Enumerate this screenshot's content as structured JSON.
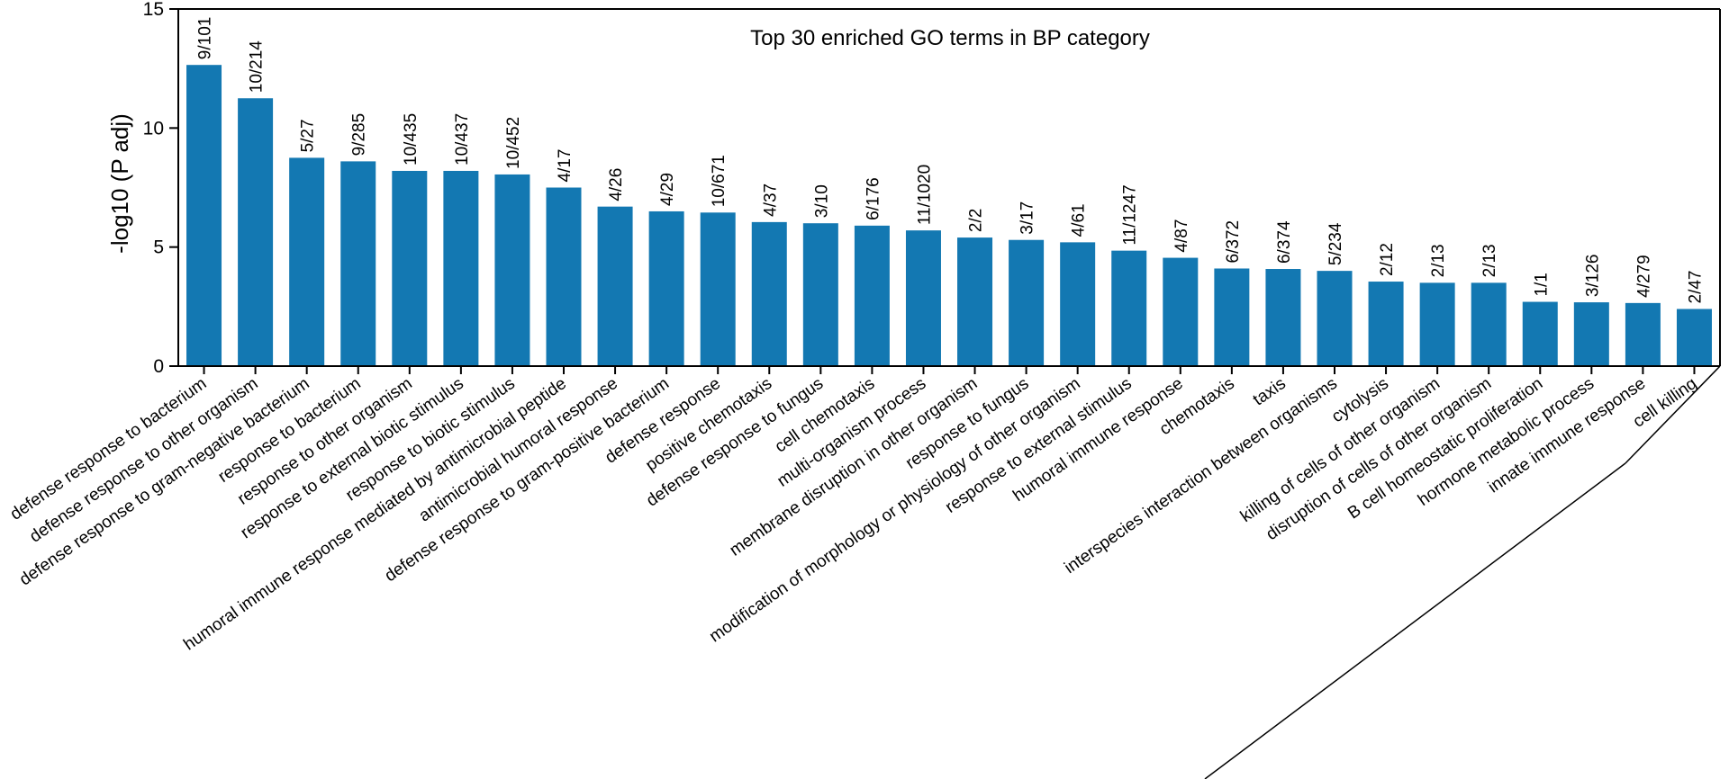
{
  "chart_data": {
    "type": "bar",
    "title": "Top 30 enriched GO terms in BP category",
    "xlabel": "",
    "ylabel": "-log10 (P adj)",
    "ylim": [
      0,
      15
    ],
    "yticks": [
      "0",
      "5",
      "10",
      "15"
    ],
    "grid": false,
    "bar_color": "#1378b2",
    "categories": [
      "defense response to bacterium",
      "defense response to other organism",
      "defense response to gram-negative bacterium",
      "response to bacterium",
      "response to other organism",
      "response to external biotic stimulus",
      "response to biotic stimulus",
      "humoral immune response mediated by antimicrobial peptide",
      "antimicrobial humoral response",
      "defense response to gram-positive bacterium",
      "defense response",
      "positive chemotaxis",
      "defense response to fungus",
      "cell chemotaxis",
      "multi-organism process",
      "membrane disruption in other organism",
      "response to fungus",
      "modification of morphology or physiology of other organism",
      "response to external stimulus",
      "humoral immune response",
      "chemotaxis",
      "taxis",
      "interspecies interaction between organisms",
      "cytolysis",
      "killing of cells of other organism",
      "disruption of cells of other organism",
      "B cell homeostatic proliferation",
      "hormone metabolic process",
      "innate immune response",
      "cell killing"
    ],
    "values": [
      12.65,
      11.25,
      8.75,
      8.6,
      8.2,
      8.2,
      8.05,
      7.5,
      6.7,
      6.5,
      6.45,
      6.05,
      6.0,
      5.9,
      5.7,
      5.4,
      5.3,
      5.2,
      4.85,
      4.55,
      4.1,
      4.08,
      4.0,
      3.55,
      3.5,
      3.5,
      2.7,
      2.68,
      2.65,
      2.4
    ],
    "data_labels": [
      "9/101",
      "10/214",
      "5/27",
      "9/285",
      "10/435",
      "10/437",
      "10/452",
      "4/17",
      "4/26",
      "4/29",
      "10/671",
      "4/37",
      "3/10",
      "6/176",
      "11/1020",
      "2/2",
      "3/17",
      "4/61",
      "11/1247",
      "4/87",
      "6/372",
      "6/374",
      "5/234",
      "2/12",
      "2/13",
      "2/13",
      "1/1",
      "3/126",
      "4/279",
      "2/47"
    ]
  }
}
